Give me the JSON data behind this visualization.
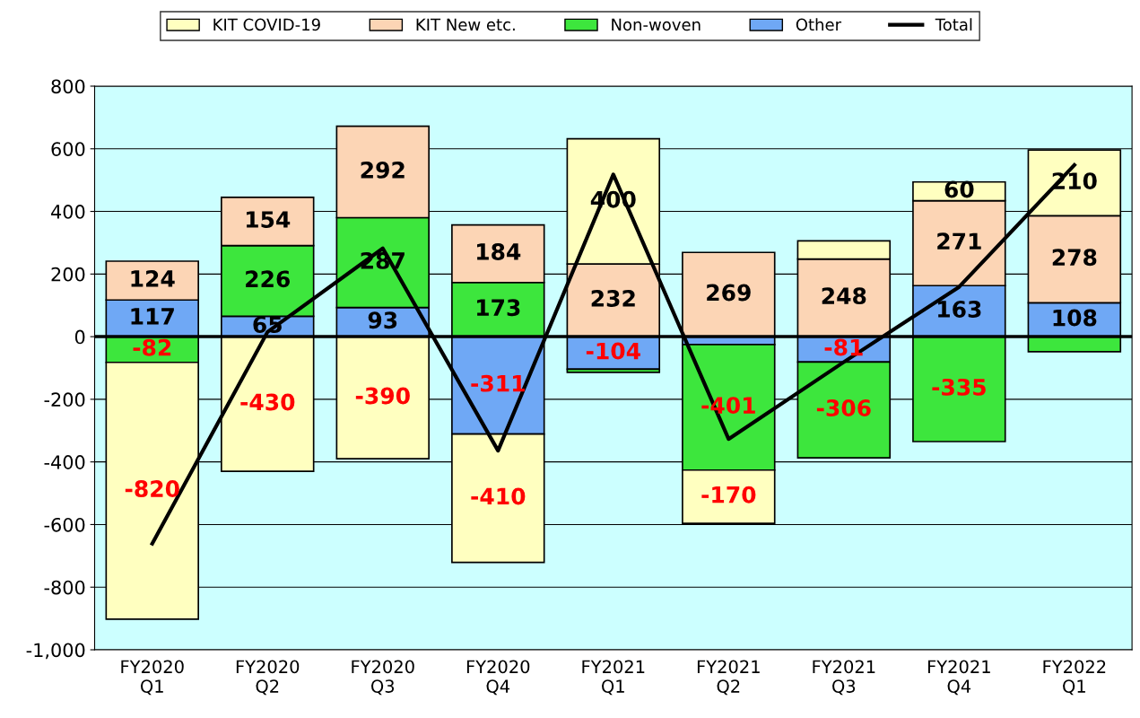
{
  "chart_data": {
    "type": "bar",
    "stacked": true,
    "categories": [
      "FY2020\nQ1",
      "FY2020\nQ2",
      "FY2020\nQ3",
      "FY2020\nQ4",
      "FY2021\nQ1",
      "FY2021\nQ2",
      "FY2021\nQ3",
      "FY2021\nQ4",
      "FY2022\nQ1"
    ],
    "series": [
      {
        "name": "Other",
        "color": "#6fa8f5",
        "values": [
          117,
          65,
          93,
          -311,
          -104,
          -25,
          -81,
          163,
          108
        ],
        "value_labels": [
          "117",
          "65",
          "93",
          "-311",
          "-104",
          null,
          "-81",
          "163",
          "108"
        ]
      },
      {
        "name": "Non-woven",
        "color": "#3de63d",
        "values": [
          -82,
          226,
          287,
          173,
          -10,
          -401,
          -306,
          -335,
          -48
        ],
        "value_labels": [
          "-82",
          "226",
          "287",
          "173",
          null,
          "-401",
          "-306",
          "-335",
          null
        ]
      },
      {
        "name": "KIT New etc.",
        "color": "#fcd5b5",
        "values": [
          124,
          154,
          292,
          184,
          232,
          269,
          248,
          271,
          278
        ],
        "value_labels": [
          "124",
          "154",
          "292",
          "184",
          "232",
          "269",
          "248",
          "271",
          "278"
        ]
      },
      {
        "name": "KIT COVID-19",
        "color": "#ffffc0",
        "values": [
          -820,
          -430,
          -390,
          -410,
          400,
          -170,
          58,
          60,
          210
        ],
        "value_labels": [
          "-820",
          "-430",
          "-390",
          "-410",
          "400",
          "-170",
          null,
          "60",
          "210"
        ]
      },
      {
        "name": "Total",
        "type": "line",
        "color": "#000000",
        "values": [
          -661,
          15,
          282,
          -364,
          518,
          -327,
          -81,
          159,
          548
        ]
      }
    ],
    "ylim": [
      -1000,
      800
    ],
    "yticks": [
      {
        "value": -1000,
        "label": "-1,000"
      },
      -800,
      -600,
      -400,
      -200,
      0,
      200,
      400,
      600,
      800
    ],
    "ref_lines": [
      {
        "axis": "y",
        "value": 0,
        "color": "#000000"
      }
    ],
    "grid": "y",
    "legend": "top"
  }
}
